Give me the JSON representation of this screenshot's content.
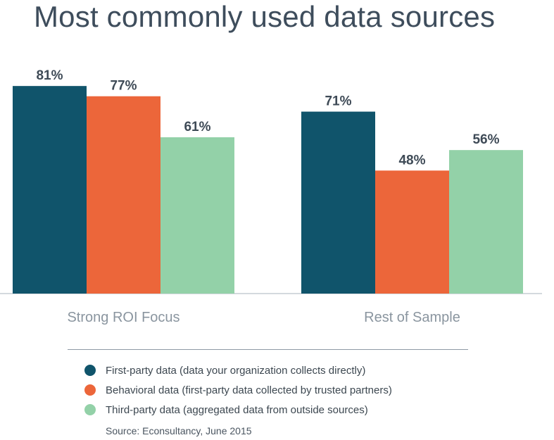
{
  "chart_data": {
    "type": "bar",
    "title": "Most commonly used data sources",
    "categories": [
      "Strong ROI Focus",
      "Rest of Sample"
    ],
    "series": [
      {
        "name": "First-party data (data your organization collects directly)",
        "color": "#10546b",
        "values": [
          81,
          71
        ],
        "labels": [
          "81%",
          "71%"
        ]
      },
      {
        "name": "Behavioral data (first-party data collected by trusted partners)",
        "color": "#ec663a",
        "values": [
          77,
          48
        ],
        "labels": [
          "77%",
          "48%"
        ]
      },
      {
        "name": "Third-party data (aggregated data from outside sources)",
        "color": "#93d1a8",
        "values": [
          61,
          56
        ],
        "labels": [
          "61%",
          "56%"
        ]
      }
    ],
    "xlabel": "",
    "ylabel": "",
    "ylim": [
      0,
      100
    ],
    "grid": false,
    "legend_position": "bottom",
    "source": "Source: Econsultancy, June 2015"
  }
}
